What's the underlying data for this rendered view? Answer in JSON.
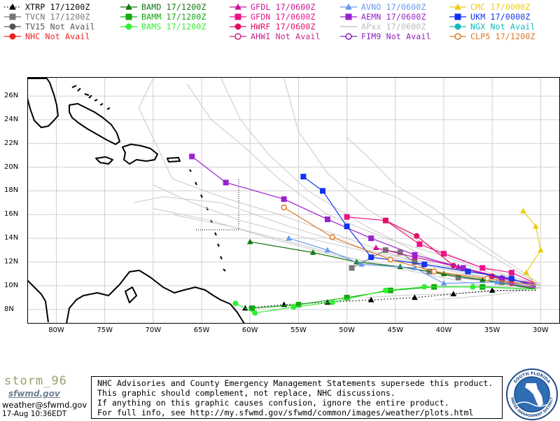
{
  "legend": [
    {
      "label": "XTRP 17/1200Z",
      "color": "#000000",
      "marker": "triangle",
      "dash": "dotted",
      "marker_fill": "filled",
      "col": 0,
      "row": 0
    },
    {
      "label": "TVCN 17/1200Z",
      "color": "#777777",
      "marker": "square",
      "dash": "solid",
      "marker_fill": "filled",
      "col": 0,
      "row": 1
    },
    {
      "label": "TV15 Not Avail",
      "color": "#555555",
      "marker": "circle",
      "dash": "solid",
      "marker_fill": "filled",
      "col": 0,
      "row": 2
    },
    {
      "label": "NHC Not Avail",
      "color": "#ee2222",
      "marker": "circle",
      "dash": "solid",
      "marker_fill": "filled",
      "col": 0,
      "row": 3
    },
    {
      "label": "BAMD 17/1200Z",
      "color": "#117711",
      "marker": "triangle",
      "dash": "solid",
      "marker_fill": "filled",
      "col": 1,
      "row": 0
    },
    {
      "label": "BAMM 17/1200Z",
      "color": "#11aa11",
      "marker": "square",
      "dash": "solid",
      "marker_fill": "filled",
      "col": 1,
      "row": 1
    },
    {
      "label": "BAMS 17/1200Z",
      "color": "#33ee33",
      "marker": "circle",
      "dash": "solid",
      "marker_fill": "filled",
      "col": 1,
      "row": 2
    },
    {
      "label": "GFDL 17/0600Z",
      "color": "#cc1199",
      "marker": "triangle",
      "dash": "solid",
      "marker_fill": "filled",
      "col": 2,
      "row": 0
    },
    {
      "label": "GFDN 17/0600Z",
      "color": "#ee1188",
      "marker": "square",
      "dash": "solid",
      "marker_fill": "filled",
      "col": 2,
      "row": 1
    },
    {
      "label": "HWRF 17/0600Z",
      "color": "#dd1166",
      "marker": "circle",
      "dash": "solid",
      "marker_fill": "filled",
      "col": 2,
      "row": 2
    },
    {
      "label": "AHWI Not Avail",
      "color": "#cc2288",
      "marker": "circle",
      "dash": "solid",
      "marker_fill": "open",
      "col": 2,
      "row": 3
    },
    {
      "label": "AVNO 17/0600Z",
      "color": "#6699ee",
      "marker": "triangle",
      "dash": "solid",
      "marker_fill": "filled",
      "col": 3,
      "row": 0
    },
    {
      "label": "AEMN 17/0600Z",
      "color": "#9922cc",
      "marker": "square",
      "dash": "solid",
      "marker_fill": "filled",
      "col": 3,
      "row": 1
    },
    {
      "label": "APxx 17/0600Z",
      "color": "#bbbbbb",
      "marker": "none",
      "dash": "solid",
      "marker_fill": "none",
      "col": 3,
      "row": 2
    },
    {
      "label": "FIM9 Not Avail",
      "color": "#8822bb",
      "marker": "circle",
      "dash": "solid",
      "marker_fill": "open",
      "col": 3,
      "row": 3
    },
    {
      "label": "CMC 17/0000Z",
      "color": "#eecc11",
      "marker": "triangle",
      "dash": "solid",
      "marker_fill": "filled",
      "col": 4,
      "row": 0
    },
    {
      "label": "UKM 17/0000Z",
      "color": "#1133ee",
      "marker": "square",
      "dash": "solid",
      "marker_fill": "filled",
      "col": 4,
      "row": 1
    },
    {
      "label": "NGX Not Avail",
      "color": "#11bbbb",
      "marker": "circle",
      "dash": "solid",
      "marker_fill": "filled",
      "col": 4,
      "row": 2
    },
    {
      "label": "CLP5 17/1200Z",
      "color": "#dd7722",
      "marker": "circle",
      "dash": "solid",
      "marker_fill": "open",
      "col": 4,
      "row": 3
    }
  ],
  "map": {
    "lon_range": [
      -83,
      -28
    ],
    "lat_range": [
      6.8,
      27.6
    ],
    "lat_labels": [
      "8N",
      "10N",
      "12N",
      "14N",
      "16N",
      "18N",
      "20N",
      "22N",
      "24N",
      "26N"
    ],
    "lat_values": [
      8,
      10,
      12,
      14,
      16,
      18,
      20,
      22,
      24,
      26
    ],
    "lon_labels": [
      "80W",
      "75W",
      "70W",
      "65W",
      "60W",
      "55W",
      "50W",
      "45W",
      "40W",
      "35W",
      "30W"
    ],
    "lon_values": [
      -80,
      -75,
      -70,
      -65,
      -60,
      -55,
      -50,
      -45,
      -40,
      -35,
      -30
    ],
    "grid_color": "#d0d0d0"
  },
  "tracks": [
    {
      "id": "XTRP",
      "color": "#000000",
      "marker": "triangle",
      "dash": "dotted",
      "points": [
        [
          -30.5,
          9.6
        ],
        [
          -35.0,
          9.6
        ],
        [
          -39.0,
          9.3
        ],
        [
          -43.0,
          9.0
        ],
        [
          -47.5,
          8.8
        ],
        [
          -52.0,
          8.6
        ],
        [
          -56.5,
          8.4
        ],
        [
          -60.5,
          8.1
        ]
      ]
    },
    {
      "id": "TVCN",
      "color": "#777777",
      "marker": "square",
      "dash": "solid",
      "points": [
        [
          -30.5,
          9.7
        ],
        [
          -34.0,
          10.3
        ],
        [
          -38.5,
          10.7
        ],
        [
          -41.5,
          11.2
        ],
        [
          -43.0,
          12.0
        ],
        [
          -44.5,
          12.8
        ],
        [
          -46.0,
          13.0
        ],
        [
          -49.5,
          11.5
        ]
      ]
    },
    {
      "id": "BAMD",
      "color": "#117711",
      "marker": "triangle",
      "dash": "solid",
      "points": [
        [
          -30.5,
          9.7
        ],
        [
          -36.0,
          10.5
        ],
        [
          -40.0,
          11.0
        ],
        [
          -44.5,
          11.6
        ],
        [
          -49.0,
          12.0
        ],
        [
          -53.5,
          12.8
        ],
        [
          -60.0,
          13.7
        ]
      ]
    },
    {
      "id": "BAMM",
      "color": "#11aa11",
      "marker": "square",
      "dash": "solid",
      "points": [
        [
          -30.5,
          9.7
        ],
        [
          -36.0,
          9.9
        ],
        [
          -41.0,
          9.9
        ],
        [
          -45.5,
          9.6
        ],
        [
          -50.0,
          9.0
        ],
        [
          -55.0,
          8.4
        ],
        [
          -59.8,
          8.1
        ]
      ]
    },
    {
      "id": "BAMS",
      "color": "#33ee33",
      "marker": "circle",
      "dash": "solid",
      "points": [
        [
          -30.5,
          9.7
        ],
        [
          -37.0,
          9.9
        ],
        [
          -42.0,
          9.9
        ],
        [
          -46.0,
          9.6
        ],
        [
          -51.5,
          8.6
        ],
        [
          -55.5,
          8.2
        ],
        [
          -59.5,
          7.7
        ],
        [
          -61.5,
          8.5
        ]
      ]
    },
    {
      "id": "GFDL",
      "color": "#cc1199",
      "marker": "triangle",
      "dash": "solid",
      "points": [
        [
          -30.5,
          10.1
        ],
        [
          -34.0,
          10.7
        ],
        [
          -38.5,
          11.6
        ],
        [
          -43.0,
          12.4
        ],
        [
          -47.0,
          13.2
        ]
      ]
    },
    {
      "id": "GFDN",
      "color": "#ee1188",
      "marker": "square",
      "dash": "solid",
      "points": [
        [
          -30.5,
          10.2
        ],
        [
          -33.0,
          11.1
        ],
        [
          -36.0,
          11.5
        ],
        [
          -40.0,
          12.7
        ],
        [
          -42.5,
          13.5
        ],
        [
          -46.0,
          15.5
        ],
        [
          -50.0,
          15.8
        ]
      ]
    },
    {
      "id": "HWRF",
      "color": "#dd1166",
      "marker": "circle",
      "dash": "solid",
      "points": [
        [
          -30.5,
          9.8
        ],
        [
          -33.0,
          10.2
        ],
        [
          -35.0,
          10.8
        ],
        [
          -39.0,
          11.7
        ],
        [
          -42.8,
          14.2
        ],
        [
          -46.0,
          15.5
        ]
      ]
    },
    {
      "id": "AVNO",
      "color": "#6699ee",
      "marker": "triangle",
      "dash": "solid",
      "points": [
        [
          -30.5,
          9.9
        ],
        [
          -34.5,
          10.3
        ],
        [
          -40.0,
          10.2
        ],
        [
          -43.0,
          11.5
        ],
        [
          -48.5,
          11.8
        ],
        [
          -52.0,
          13.0
        ],
        [
          -56.0,
          14.0
        ]
      ]
    },
    {
      "id": "AEMN",
      "color": "#9922cc",
      "marker": "square",
      "dash": "solid",
      "points": [
        [
          -30.5,
          10.2
        ],
        [
          -34.0,
          10.6
        ],
        [
          -38.0,
          11.5
        ],
        [
          -43.0,
          12.6
        ],
        [
          -47.5,
          14.0
        ],
        [
          -52.0,
          15.6
        ],
        [
          -56.5,
          17.3
        ],
        [
          -62.5,
          18.7
        ],
        [
          -66.0,
          20.9
        ]
      ]
    },
    {
      "id": "CMC",
      "color": "#eecc11",
      "marker": "triangle",
      "dash": "solid",
      "points": [
        [
          -30.5,
          10.1
        ],
        [
          -31.5,
          11.1
        ],
        [
          -30.0,
          13.0
        ],
        [
          -30.5,
          15.0
        ],
        [
          -31.8,
          16.3
        ]
      ]
    },
    {
      "id": "UKM",
      "color": "#1133ee",
      "marker": "square",
      "dash": "solid",
      "points": [
        [
          -30.5,
          9.9
        ],
        [
          -33.0,
          10.6
        ],
        [
          -37.5,
          11.2
        ],
        [
          -42.0,
          11.8
        ],
        [
          -47.5,
          12.4
        ],
        [
          -50.0,
          15.0
        ],
        [
          -52.5,
          18.0
        ],
        [
          -54.5,
          19.2
        ]
      ]
    },
    {
      "id": "CLP5",
      "color": "#dd7722",
      "marker": "circle",
      "dash": "solid",
      "points": [
        [
          -30.5,
          10.0
        ],
        [
          -35.5,
          10.6
        ],
        [
          -41.0,
          11.2
        ],
        [
          -45.5,
          12.2
        ],
        [
          -51.5,
          14.1
        ],
        [
          -56.5,
          16.6
        ]
      ]
    }
  ],
  "ensemble_color": "#c8c8c8",
  "ensemble_tracks": [
    [
      [
        -30.0,
        10.0
      ],
      [
        -36.0,
        10.5
      ],
      [
        -42.0,
        12.5
      ],
      [
        -48.0,
        15.0
      ],
      [
        -54.0,
        18.0
      ],
      [
        -58.0,
        21.0
      ],
      [
        -61.0,
        24.0
      ],
      [
        -63.0,
        27.5
      ]
    ],
    [
      [
        -30.0,
        10.0
      ],
      [
        -36.0,
        11.5
      ],
      [
        -42.0,
        13.5
      ],
      [
        -48.0,
        16.5
      ],
      [
        -52.0,
        19.5
      ],
      [
        -55.0,
        23.0
      ],
      [
        -56.5,
        27.5
      ]
    ],
    [
      [
        -30.0,
        10.2
      ],
      [
        -35.0,
        11.0
      ],
      [
        -40.0,
        12.5
      ],
      [
        -46.0,
        14.0
      ],
      [
        -52.0,
        16.0
      ],
      [
        -57.0,
        19.0
      ],
      [
        -61.0,
        22.0
      ],
      [
        -64.0,
        24.0
      ],
      [
        -66.5,
        27.0
      ]
    ],
    [
      [
        -30.0,
        10.0
      ],
      [
        -36.0,
        10.8
      ],
      [
        -43.0,
        12.0
      ],
      [
        -50.0,
        14.0
      ],
      [
        -57.0,
        16.0
      ],
      [
        -63.0,
        17.5
      ],
      [
        -68.0,
        19.0
      ],
      [
        -71.5,
        25.0
      ],
      [
        -70.0,
        27.5
      ]
    ],
    [
      [
        -30.0,
        10.0
      ],
      [
        -37.0,
        10.5
      ],
      [
        -44.0,
        11.5
      ],
      [
        -51.0,
        12.5
      ],
      [
        -58.0,
        14.0
      ],
      [
        -64.0,
        15.5
      ],
      [
        -70.0,
        16.5
      ]
    ],
    [
      [
        -30.0,
        10.0
      ],
      [
        -38.0,
        11.0
      ],
      [
        -46.0,
        12.5
      ],
      [
        -54.0,
        14.0
      ],
      [
        -61.0,
        15.5
      ],
      [
        -66.0,
        17.0
      ],
      [
        -70.0,
        18.5
      ]
    ],
    [
      [
        -30.0,
        9.8
      ],
      [
        -36.0,
        10.0
      ],
      [
        -42.0,
        11.0
      ],
      [
        -48.0,
        12.0
      ],
      [
        -55.0,
        13.5
      ],
      [
        -62.0,
        15.0
      ],
      [
        -68.0,
        16.0
      ]
    ],
    [
      [
        -30.0,
        9.8
      ],
      [
        -35.0,
        9.5
      ],
      [
        -40.0,
        9.3
      ],
      [
        -44.0,
        9.2
      ],
      [
        -48.0,
        9.0
      ]
    ],
    [
      [
        -30.0,
        9.9
      ],
      [
        -34.0,
        9.3
      ],
      [
        -38.0,
        9.0
      ],
      [
        -41.0,
        8.8
      ]
    ],
    [
      [
        -30.0,
        10.1
      ],
      [
        -33.0,
        11.8
      ],
      [
        -37.0,
        14.0
      ],
      [
        -41.0,
        16.5
      ],
      [
        -45.0,
        18.5
      ],
      [
        -48.0,
        21.0
      ],
      [
        -50.0,
        22.5
      ]
    ],
    [
      [
        -30.0,
        10.0
      ],
      [
        -35.0,
        12.5
      ],
      [
        -40.0,
        15.0
      ],
      [
        -45.0,
        17.5
      ],
      [
        -50.0,
        19.0
      ]
    ],
    [
      [
        -30.0,
        10.0
      ],
      [
        -39.0,
        11.5
      ],
      [
        -48.0,
        13.0
      ],
      [
        -56.0,
        15.0
      ],
      [
        -63.0,
        17.0
      ],
      [
        -69.0,
        17.5
      ],
      [
        -72.0,
        17.0
      ]
    ]
  ],
  "footer": {
    "logo_text": "storm_96",
    "org_text": "sfwmd.gov",
    "email": "weather@sfwmd.gov",
    "datetime": "17-Aug 10:36EDT",
    "notice_lines": [
      "NHC Advisories and County Emergency Management Statements supersede this product.",
      "This graphic should complement, not replace, NHC discussions.",
      "If anything on this graphic causes confusion, ignore the entire product.",
      "For full info, see  http://my.sfwmd.gov/sfwmd/common/images/weather/plots.html"
    ],
    "seal_top": "SOUTH FLORIDA",
    "seal_bottom": "WATER MANAGEMENT DISTRICT"
  }
}
